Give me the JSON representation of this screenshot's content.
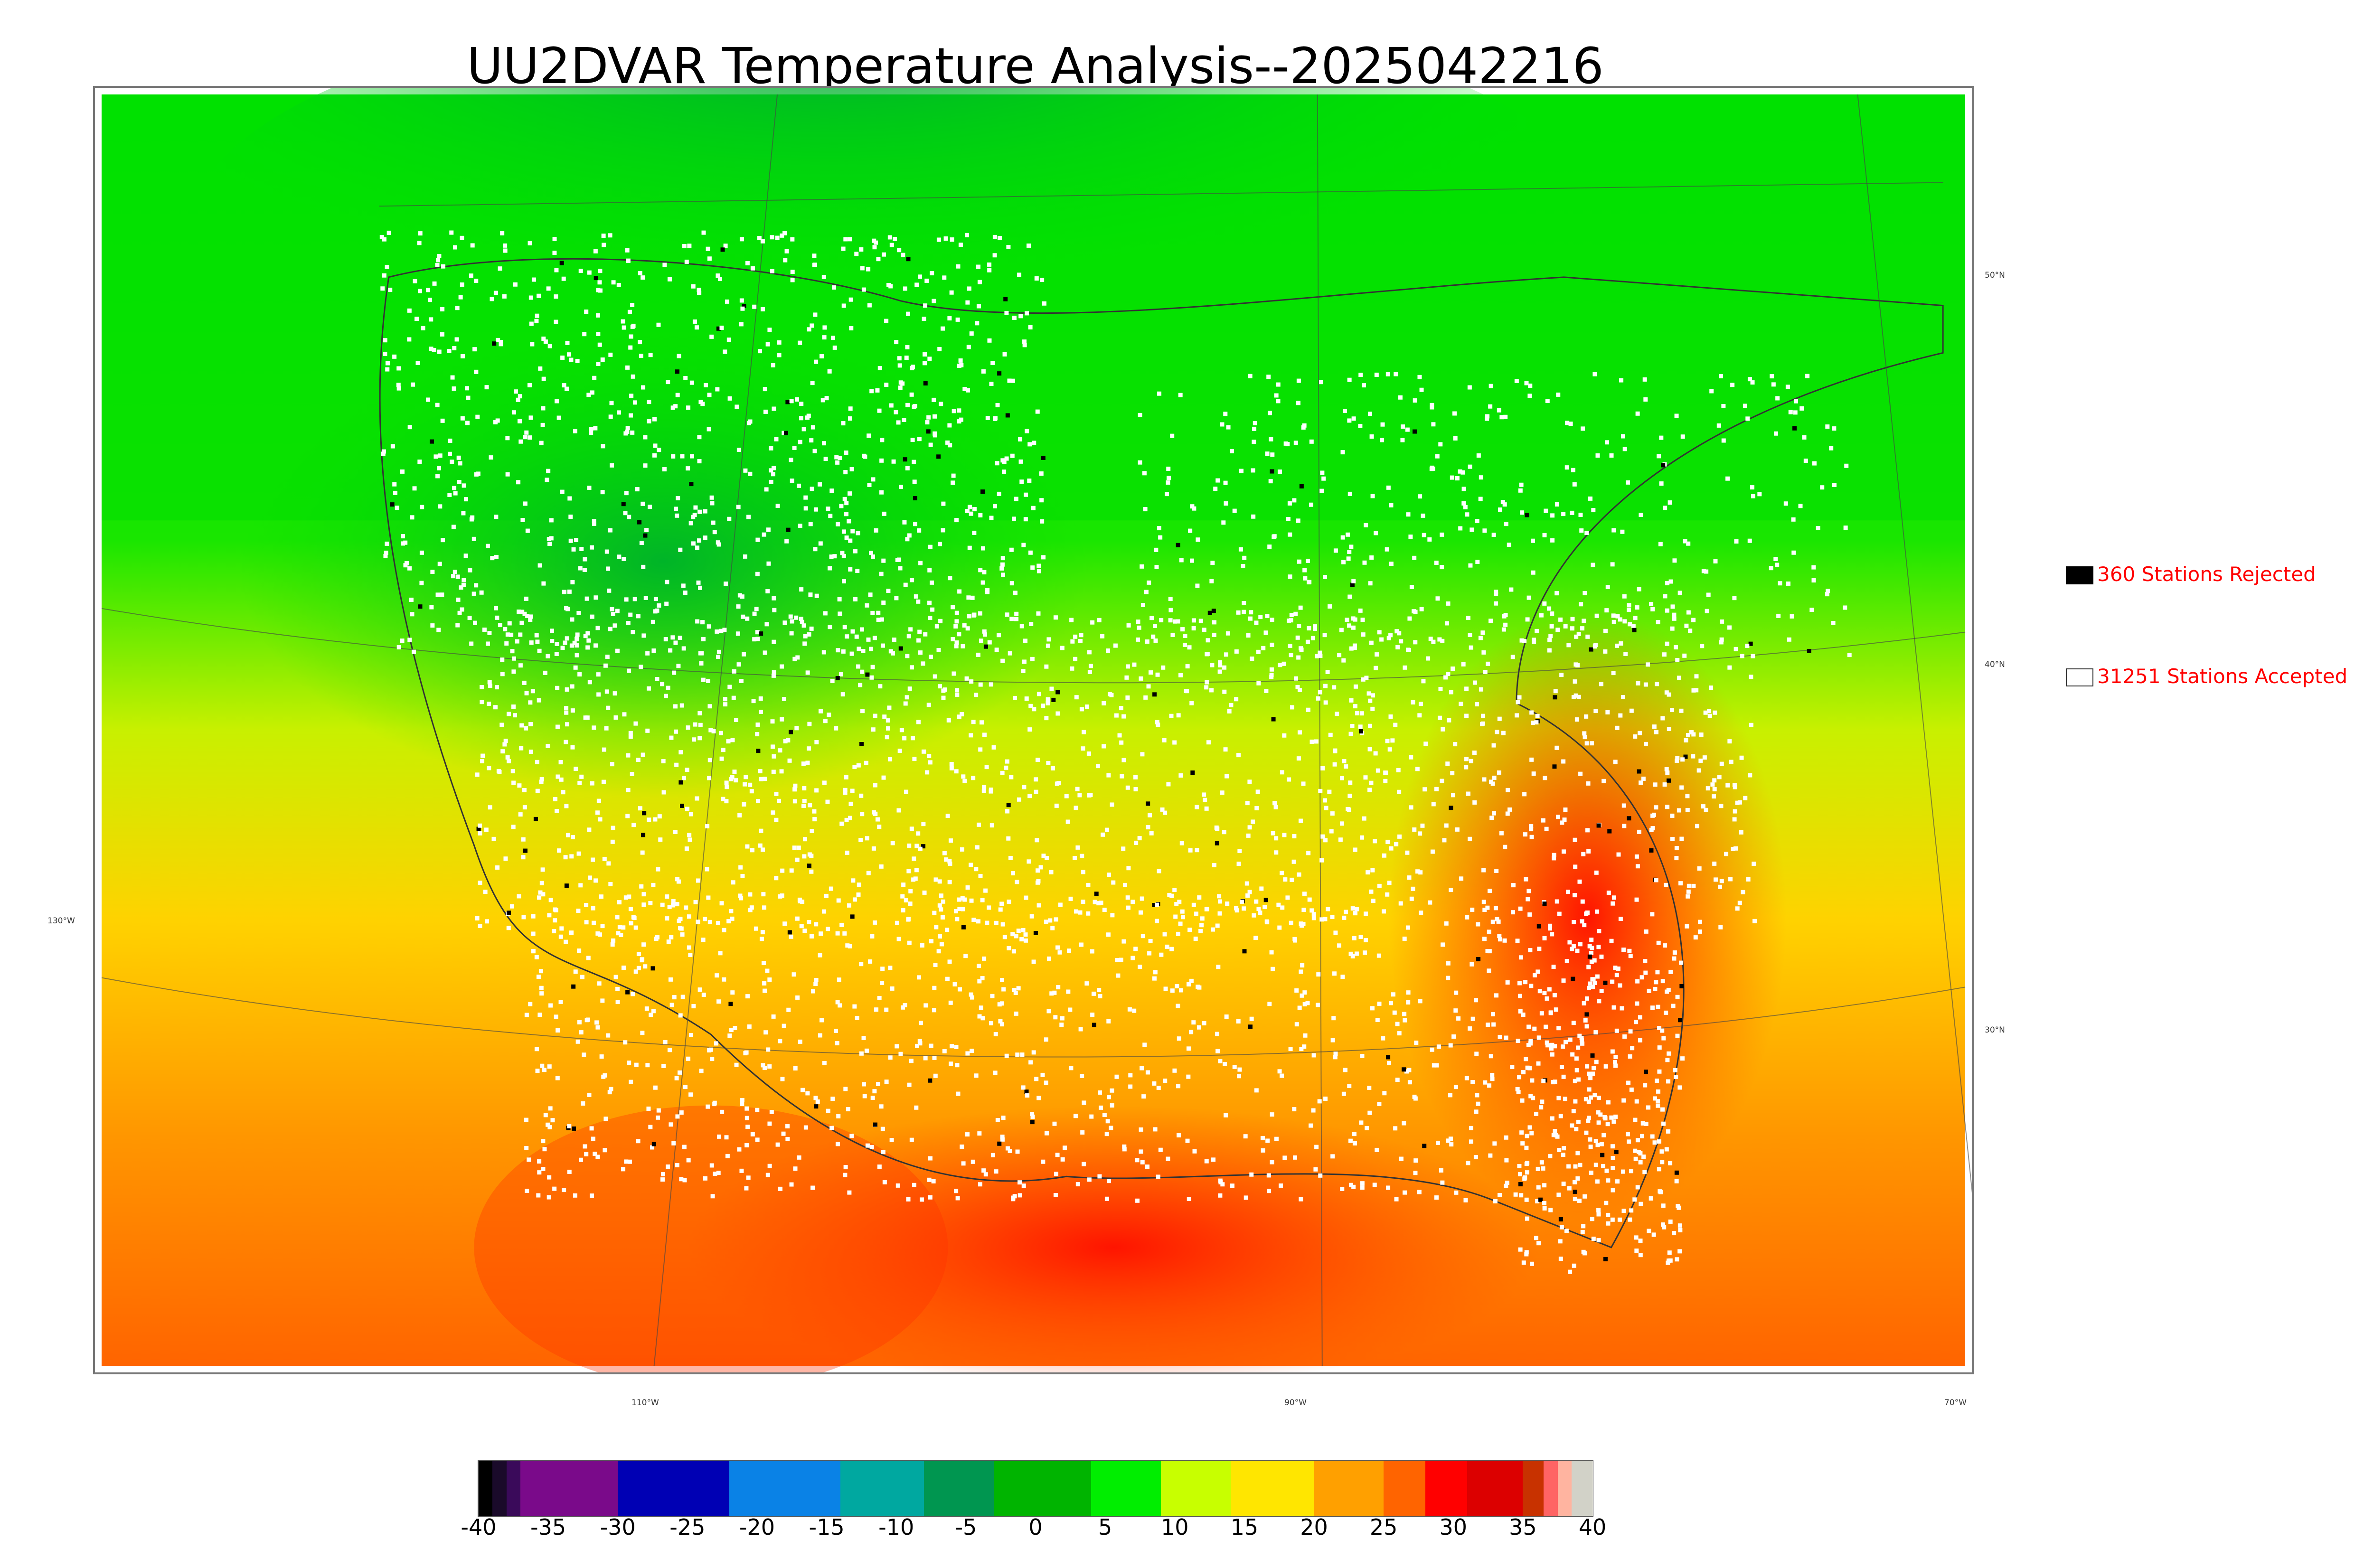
{
  "title": "UU2DVAR Temperature Analysis--2025042216",
  "legend": {
    "rejected": {
      "label": "360 Stations Rejected",
      "swatch_color": "#000000"
    },
    "accepted": {
      "label": "31251 Stations Accepted",
      "swatch_color": "#ffffff"
    }
  },
  "map": {
    "lat_labels": [
      "50°N",
      "40°N",
      "30°N"
    ],
    "lon_labels": [
      "130°W",
      "110°W",
      "90°W",
      "70°W"
    ]
  },
  "colorbar": {
    "ticks": [
      "-40",
      "-35",
      "-30",
      "-25",
      "-20",
      "-15",
      "-10",
      "-5",
      "0",
      "5",
      "10",
      "15",
      "20",
      "25",
      "30",
      "35",
      "40"
    ],
    "colors": [
      {
        "from": -40,
        "to": -39,
        "color": "#000000"
      },
      {
        "from": -39,
        "to": -38,
        "color": "#1a0a2a"
      },
      {
        "from": -38,
        "to": -37,
        "color": "#3a0a5a"
      },
      {
        "from": -37,
        "to": -30,
        "color": "#7a0a8a"
      },
      {
        "from": -30,
        "to": -22,
        "color": "#0000b4"
      },
      {
        "from": -22,
        "to": -14,
        "color": "#0a82e6"
      },
      {
        "from": -14,
        "to": -8,
        "color": "#00a8a0"
      },
      {
        "from": -8,
        "to": -3,
        "color": "#009650"
      },
      {
        "from": -3,
        "to": 4,
        "color": "#00b400"
      },
      {
        "from": 4,
        "to": 9,
        "color": "#00ee00"
      },
      {
        "from": 9,
        "to": 14,
        "color": "#c8ff00"
      },
      {
        "from": 14,
        "to": 20,
        "color": "#ffe600"
      },
      {
        "from": 20,
        "to": 25,
        "color": "#ffa000"
      },
      {
        "from": 25,
        "to": 28,
        "color": "#ff6400"
      },
      {
        "from": 28,
        "to": 31,
        "color": "#ff0000"
      },
      {
        "from": 31,
        "to": 35,
        "color": "#dc0000"
      },
      {
        "from": 35,
        "to": 36.5,
        "color": "#c83200"
      },
      {
        "from": 36.5,
        "to": 37.5,
        "color": "#ff6464"
      },
      {
        "from": 37.5,
        "to": 38.5,
        "color": "#ffb4a0"
      },
      {
        "from": 38.5,
        "to": 40,
        "color": "#d2d2c8"
      }
    ]
  }
}
